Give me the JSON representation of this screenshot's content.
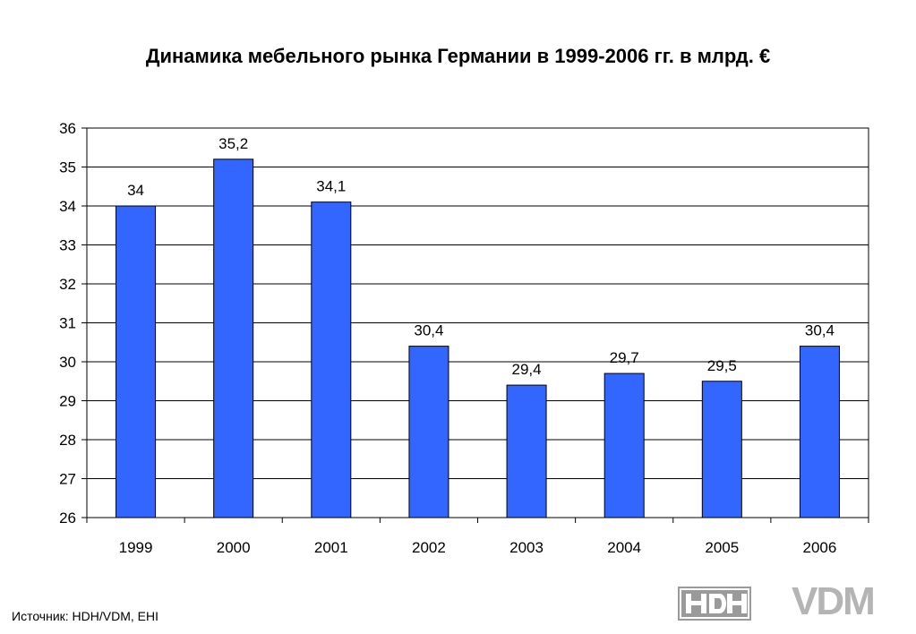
{
  "chart_data": {
    "type": "bar",
    "title": "Динамика мебельного рынка Германии в 1999-2006 гг. в млрд. €",
    "categories": [
      "1999",
      "2000",
      "2001",
      "2002",
      "2003",
      "2004",
      "2005",
      "2006"
    ],
    "values": [
      34,
      35.2,
      34.1,
      30.4,
      29.4,
      29.7,
      29.5,
      30.4
    ],
    "value_labels": [
      "34",
      "35,2",
      "34,1",
      "30,4",
      "29,4",
      "29,7",
      "29,5",
      "30,4"
    ],
    "y_ticks": [
      "26",
      "27",
      "28",
      "29",
      "30",
      "31",
      "32",
      "33",
      "34",
      "35",
      "36"
    ],
    "ylim": [
      26,
      36
    ],
    "xlabel": "",
    "ylabel": "",
    "grid": true,
    "legend": "none",
    "bar_color": "#3366ff"
  },
  "footer": {
    "source": "Источник: HDH/VDM, EHI",
    "logo_hdh_text": "HDH",
    "logo_vdm_text": "VDM"
  }
}
